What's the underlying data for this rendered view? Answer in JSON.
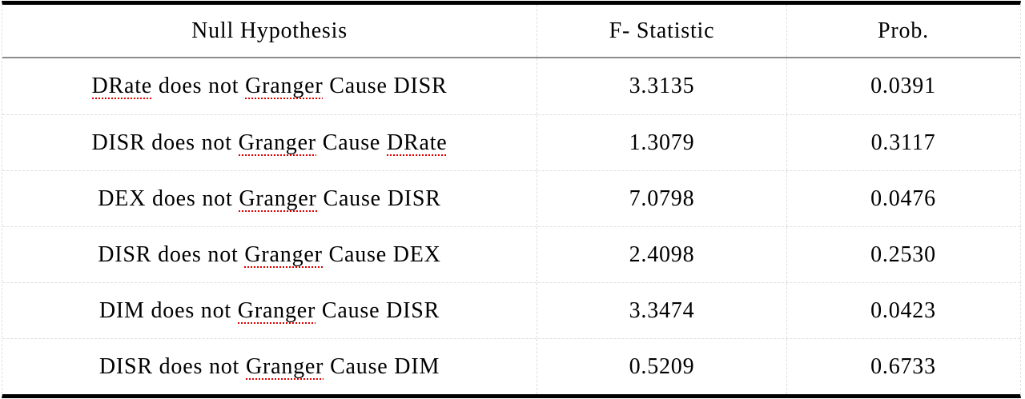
{
  "table": {
    "columns": [
      "Null Hypothesis",
      "F- Statistic",
      "Prob."
    ],
    "rows": [
      {
        "hypothesis_full": "DRate does not Granger Cause DISR",
        "segments": [
          {
            "text": "DRate",
            "misspelled": true
          },
          {
            "text": " does not ",
            "misspelled": false
          },
          {
            "text": "Granger",
            "misspelled": true
          },
          {
            "text": " Cause DISR",
            "misspelled": false
          }
        ],
        "f_statistic": "3.3135",
        "prob": "0.0391"
      },
      {
        "hypothesis_full": "DISR does not Granger Cause DRate",
        "segments": [
          {
            "text": "DISR does not ",
            "misspelled": false
          },
          {
            "text": "Granger",
            "misspelled": true
          },
          {
            "text": " Cause ",
            "misspelled": false
          },
          {
            "text": "DRate",
            "misspelled": true
          }
        ],
        "f_statistic": "1.3079",
        "prob": "0.3117"
      },
      {
        "hypothesis_full": "DEX does not Granger Cause DISR",
        "segments": [
          {
            "text": "DEX does not ",
            "misspelled": false
          },
          {
            "text": "Granger",
            "misspelled": true
          },
          {
            "text": " Cause DISR",
            "misspelled": false
          }
        ],
        "f_statistic": "7.0798",
        "prob": "0.0476"
      },
      {
        "hypothesis_full": "DISR does not Granger Cause DEX",
        "segments": [
          {
            "text": "DISR does not ",
            "misspelled": false
          },
          {
            "text": "Granger",
            "misspelled": true
          },
          {
            "text": " Cause DEX",
            "misspelled": false
          }
        ],
        "f_statistic": "2.4098",
        "prob": "0.2530"
      },
      {
        "hypothesis_full": "DIM does not Granger Cause DISR",
        "segments": [
          {
            "text": "DIM does not ",
            "misspelled": false
          },
          {
            "text": "Granger",
            "misspelled": true
          },
          {
            "text": " Cause DISR",
            "misspelled": false
          }
        ],
        "f_statistic": "3.3474",
        "prob": "0.0423"
      },
      {
        "hypothesis_full": "DISR does not Granger Cause DIM",
        "segments": [
          {
            "text": "DISR does not ",
            "misspelled": false
          },
          {
            "text": "Granger",
            "misspelled": true
          },
          {
            "text": " Cause DIM",
            "misspelled": false
          }
        ],
        "f_statistic": "0.5209",
        "prob": "0.6733"
      }
    ]
  },
  "colors": {
    "text": "#000000",
    "table_outer_border": "#000000",
    "header_rule": "#8c8c8c",
    "gridline": "#dedede",
    "spellcheck_underline": "#e00000",
    "background": "#ffffff"
  }
}
